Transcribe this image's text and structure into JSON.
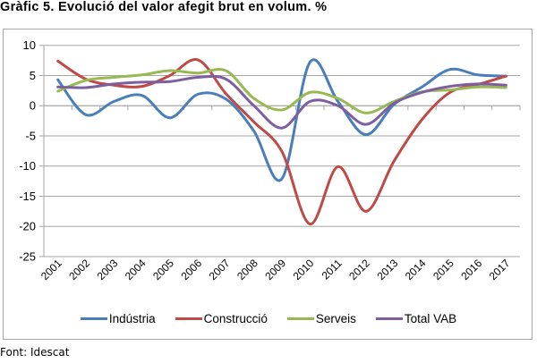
{
  "title": "Gràfic 5. Evolució del valor afegit brut en volum. %",
  "source": "Font: Idescat",
  "chart_data": {
    "type": "line",
    "title": "Gràfic 5. Evolució del valor afegit brut en volum. %",
    "xlabel": "",
    "ylabel": "",
    "ylim": [
      -25,
      10
    ],
    "yticks": [
      "10",
      "5",
      "0",
      "-5",
      "-10",
      "-15",
      "-20",
      "-25"
    ],
    "ytick_values": [
      10,
      5,
      0,
      -5,
      -10,
      -15,
      -20,
      -25
    ],
    "grid": true,
    "legend_position": "bottom",
    "categories": [
      "2001",
      "2002",
      "2003",
      "2004",
      "2005",
      "2006",
      "2007",
      "2008",
      "2009",
      "2010",
      "2011",
      "2012",
      "2013",
      "2014",
      "2015",
      "2016",
      "2017"
    ],
    "series": [
      {
        "name": "Indústria",
        "color": "#4a7ebb",
        "values": [
          4.3,
          -1.5,
          0.7,
          1.7,
          -2.0,
          1.9,
          1.1,
          -4.2,
          -12.1,
          7.2,
          0.7,
          -4.8,
          0.2,
          3.1,
          6.0,
          5.1,
          4.9
        ]
      },
      {
        "name": "Construcció",
        "color": "#be4b48",
        "values": [
          7.4,
          4.4,
          3.4,
          3.2,
          5.0,
          7.6,
          2.0,
          -2.7,
          -7.6,
          -19.6,
          -10.1,
          -17.5,
          -9.2,
          -2.3,
          2.2,
          3.5,
          4.9
        ]
      },
      {
        "name": "Serveis",
        "color": "#98b954",
        "values": [
          2.4,
          4.2,
          4.7,
          5.1,
          5.8,
          5.4,
          5.8,
          1.2,
          -0.7,
          2.2,
          1.2,
          -1.2,
          0.7,
          2.3,
          2.6,
          3.1,
          3.0
        ]
      },
      {
        "name": "Total VAB",
        "color": "#7d5fa0",
        "values": [
          3.1,
          3.0,
          3.6,
          3.9,
          4.0,
          4.7,
          4.4,
          0.0,
          -3.7,
          0.7,
          0.0,
          -3.1,
          0.4,
          2.2,
          3.2,
          3.6,
          3.4
        ]
      }
    ]
  }
}
